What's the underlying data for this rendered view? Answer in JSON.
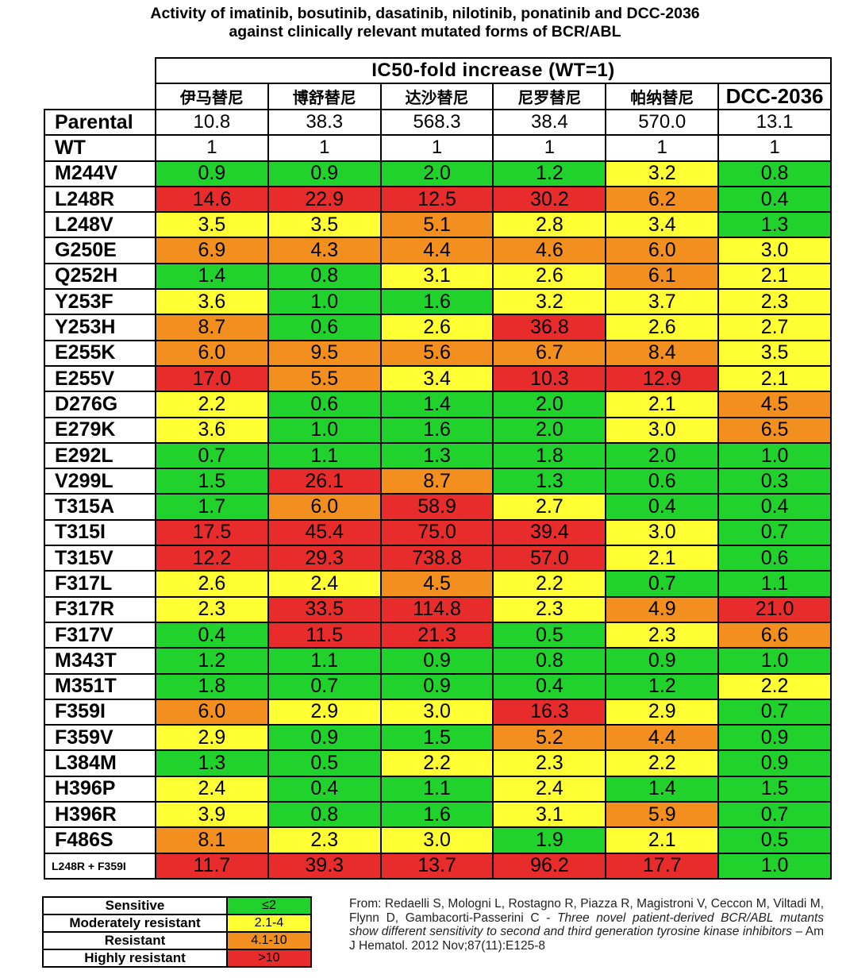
{
  "title_lines": [
    "Activity of imatinib, bosutinib, dasatinib, nilotinib, ponatinib and DCC-2036",
    "against clinically relevant mutated forms of BCR/ABL"
  ],
  "table_header": "IC50-fold increase (WT=1)",
  "drugs": [
    "伊马替尼",
    "博舒替尼",
    "达沙替尼",
    "尼罗替尼",
    "帕纳替尼",
    "DCC-2036"
  ],
  "colors": {
    "sensitive": "#22d22c",
    "moderate": "#ffff33",
    "resistant": "#f28f1f",
    "highly": "#e82c2c"
  },
  "rows": [
    {
      "label": "Parental",
      "values": [
        "10.8",
        "38.3",
        "568.3",
        "38.4",
        "570.0",
        "13.1"
      ],
      "levels": [
        "plain",
        "plain",
        "plain",
        "plain",
        "plain",
        "plain"
      ]
    },
    {
      "label": "WT",
      "values": [
        "1",
        "1",
        "1",
        "1",
        "1",
        "1"
      ],
      "levels": [
        "plain",
        "plain",
        "plain",
        "plain",
        "plain",
        "plain"
      ]
    },
    {
      "label": "M244V",
      "values": [
        "0.9",
        "0.9",
        "2.0",
        "1.2",
        "3.2",
        "0.8"
      ],
      "levels": [
        "sensitive",
        "sensitive",
        "sensitive",
        "sensitive",
        "moderate",
        "sensitive"
      ]
    },
    {
      "label": "L248R",
      "values": [
        "14.6",
        "22.9",
        "12.5",
        "30.2",
        "6.2",
        "0.4"
      ],
      "levels": [
        "highly",
        "highly",
        "highly",
        "highly",
        "resistant",
        "sensitive"
      ]
    },
    {
      "label": "L248V",
      "values": [
        "3.5",
        "3.5",
        "5.1",
        "2.8",
        "3.4",
        "1.3"
      ],
      "levels": [
        "moderate",
        "moderate",
        "resistant",
        "moderate",
        "moderate",
        "sensitive"
      ]
    },
    {
      "label": "G250E",
      "values": [
        "6.9",
        "4.3",
        "4.4",
        "4.6",
        "6.0",
        "3.0"
      ],
      "levels": [
        "resistant",
        "resistant",
        "resistant",
        "resistant",
        "resistant",
        "moderate"
      ]
    },
    {
      "label": "Q252H",
      "values": [
        "1.4",
        "0.8",
        "3.1",
        "2.6",
        "6.1",
        "2.1"
      ],
      "levels": [
        "sensitive",
        "sensitive",
        "moderate",
        "moderate",
        "resistant",
        "moderate"
      ]
    },
    {
      "label": "Y253F",
      "values": [
        "3.6",
        "1.0",
        "1.6",
        "3.2",
        "3.7",
        "2.3"
      ],
      "levels": [
        "moderate",
        "sensitive",
        "sensitive",
        "moderate",
        "moderate",
        "moderate"
      ]
    },
    {
      "label": "Y253H",
      "values": [
        "8.7",
        "0.6",
        "2.6",
        "36.8",
        "2.6",
        "2.7"
      ],
      "levels": [
        "resistant",
        "sensitive",
        "moderate",
        "highly",
        "moderate",
        "moderate"
      ]
    },
    {
      "label": "E255K",
      "values": [
        "6.0",
        "9.5",
        "5.6",
        "6.7",
        "8.4",
        "3.5"
      ],
      "levels": [
        "resistant",
        "resistant",
        "resistant",
        "resistant",
        "resistant",
        "moderate"
      ]
    },
    {
      "label": "E255V",
      "values": [
        "17.0",
        "5.5",
        "3.4",
        "10.3",
        "12.9",
        "2.1"
      ],
      "levels": [
        "highly",
        "resistant",
        "moderate",
        "highly",
        "highly",
        "moderate"
      ]
    },
    {
      "label": "D276G",
      "values": [
        "2.2",
        "0.6",
        "1.4",
        "2.0",
        "2.1",
        "4.5"
      ],
      "levels": [
        "moderate",
        "sensitive",
        "sensitive",
        "sensitive",
        "moderate",
        "resistant"
      ]
    },
    {
      "label": "E279K",
      "values": [
        "3.6",
        "1.0",
        "1.6",
        "2.0",
        "3.0",
        "6.5"
      ],
      "levels": [
        "moderate",
        "sensitive",
        "sensitive",
        "sensitive",
        "moderate",
        "resistant"
      ]
    },
    {
      "label": "E292L",
      "values": [
        "0.7",
        "1.1",
        "1.3",
        "1.8",
        "2.0",
        "1.0"
      ],
      "levels": [
        "sensitive",
        "sensitive",
        "sensitive",
        "sensitive",
        "sensitive",
        "sensitive"
      ]
    },
    {
      "label": "V299L",
      "values": [
        "1.5",
        "26.1",
        "8.7",
        "1.3",
        "0.6",
        "0.3"
      ],
      "levels": [
        "sensitive",
        "highly",
        "resistant",
        "sensitive",
        "sensitive",
        "sensitive"
      ]
    },
    {
      "label": "T315A",
      "values": [
        "1.7",
        "6.0",
        "58.9",
        "2.7",
        "0.4",
        "0.4"
      ],
      "levels": [
        "sensitive",
        "resistant",
        "highly",
        "moderate",
        "sensitive",
        "sensitive"
      ]
    },
    {
      "label": "T315I",
      "values": [
        "17.5",
        "45.4",
        "75.0",
        "39.4",
        "3.0",
        "0.7"
      ],
      "levels": [
        "highly",
        "highly",
        "highly",
        "highly",
        "moderate",
        "sensitive"
      ]
    },
    {
      "label": "T315V",
      "values": [
        "12.2",
        "29.3",
        "738.8",
        "57.0",
        "2.1",
        "0.6"
      ],
      "levels": [
        "highly",
        "highly",
        "highly",
        "highly",
        "moderate",
        "sensitive"
      ]
    },
    {
      "label": "F317L",
      "values": [
        "2.6",
        "2.4",
        "4.5",
        "2.2",
        "0.7",
        "1.1"
      ],
      "levels": [
        "moderate",
        "moderate",
        "resistant",
        "moderate",
        "sensitive",
        "sensitive"
      ]
    },
    {
      "label": "F317R",
      "values": [
        "2.3",
        "33.5",
        "114.8",
        "2.3",
        "4.9",
        "21.0"
      ],
      "levels": [
        "moderate",
        "highly",
        "highly",
        "moderate",
        "resistant",
        "highly"
      ]
    },
    {
      "label": "F317V",
      "values": [
        "0.4",
        "11.5",
        "21.3",
        "0.5",
        "2.3",
        "6.6"
      ],
      "levels": [
        "sensitive",
        "highly",
        "highly",
        "sensitive",
        "moderate",
        "resistant"
      ]
    },
    {
      "label": "M343T",
      "values": [
        "1.2",
        "1.1",
        "0.9",
        "0.8",
        "0.9",
        "1.0"
      ],
      "levels": [
        "sensitive",
        "sensitive",
        "sensitive",
        "sensitive",
        "sensitive",
        "sensitive"
      ]
    },
    {
      "label": "M351T",
      "values": [
        "1.8",
        "0.7",
        "0.9",
        "0.4",
        "1.2",
        "2.2"
      ],
      "levels": [
        "sensitive",
        "sensitive",
        "sensitive",
        "sensitive",
        "sensitive",
        "moderate"
      ]
    },
    {
      "label": "F359I",
      "values": [
        "6.0",
        "2.9",
        "3.0",
        "16.3",
        "2.9",
        "0.7"
      ],
      "levels": [
        "resistant",
        "moderate",
        "moderate",
        "highly",
        "moderate",
        "sensitive"
      ]
    },
    {
      "label": "F359V",
      "values": [
        "2.9",
        "0.9",
        "1.5",
        "5.2",
        "4.4",
        "0.9"
      ],
      "levels": [
        "moderate",
        "sensitive",
        "sensitive",
        "resistant",
        "resistant",
        "sensitive"
      ]
    },
    {
      "label": "L384M",
      "values": [
        "1.3",
        "0.5",
        "2.2",
        "2.3",
        "2.2",
        "0.9"
      ],
      "levels": [
        "sensitive",
        "sensitive",
        "moderate",
        "moderate",
        "moderate",
        "sensitive"
      ]
    },
    {
      "label": "H396P",
      "values": [
        "2.4",
        "0.4",
        "1.1",
        "2.4",
        "1.4",
        "1.5"
      ],
      "levels": [
        "moderate",
        "sensitive",
        "sensitive",
        "moderate",
        "sensitive",
        "sensitive"
      ]
    },
    {
      "label": "H396R",
      "values": [
        "3.9",
        "0.8",
        "1.6",
        "3.1",
        "5.9",
        "0.7"
      ],
      "levels": [
        "moderate",
        "sensitive",
        "sensitive",
        "moderate",
        "resistant",
        "sensitive"
      ]
    },
    {
      "label": "F486S",
      "values": [
        "8.1",
        "2.3",
        "3.0",
        "1.9",
        "2.1",
        "0.5"
      ],
      "levels": [
        "resistant",
        "moderate",
        "moderate",
        "sensitive",
        "moderate",
        "sensitive"
      ]
    },
    {
      "label": "L248R + F359I",
      "values": [
        "11.7",
        "39.3",
        "13.7",
        "96.2",
        "17.7",
        "1.0"
      ],
      "levels": [
        "highly",
        "highly",
        "highly",
        "highly",
        "highly",
        "sensitive"
      ],
      "small": true
    }
  ],
  "legend": [
    {
      "label": "Sensitive",
      "value": "≤2",
      "level": "sensitive"
    },
    {
      "label": "Moderately resistant",
      "value": "2.1-4",
      "level": "moderate"
    },
    {
      "label": "Resistant",
      "value": "4.1-10",
      "level": "resistant"
    },
    {
      "label": "Highly resistant",
      "value": ">10",
      "level": "highly"
    }
  ],
  "citation": {
    "prefix": "From: Redaelli S, Mologni L, Rostagno R, Piazza R, Magistroni V, Ceccon M, Viltadi M, Flynn D, Gambacorti-Passerini C - ",
    "italic": "Three novel patient-derived BCR/ABL mutants show different sensitivity to second and third generation tyrosine kinase inhibitors",
    "suffix": " – Am J Hematol. 2012 Nov;87(11):E125-8"
  }
}
